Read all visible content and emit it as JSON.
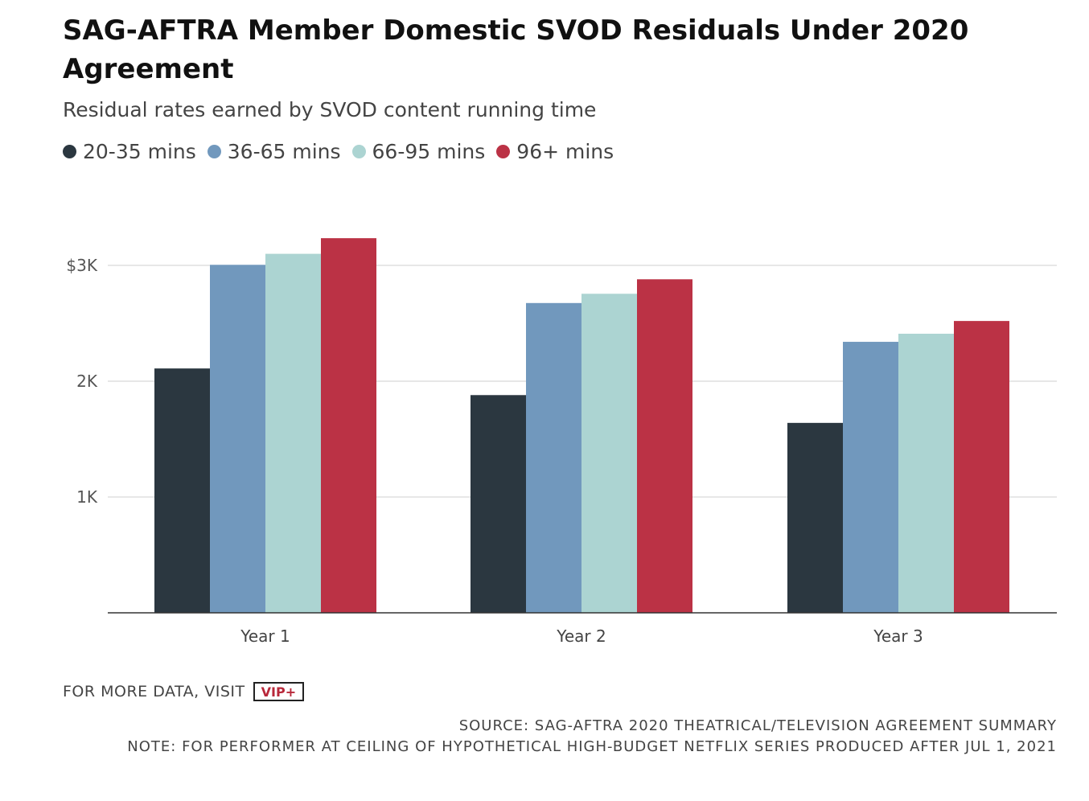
{
  "title": "SAG-AFTRA Member Domestic SVOD Residuals Under 2020 Agreement",
  "subtitle": "Residual rates earned by SVOD content running time",
  "legend": [
    {
      "label": "20-35 mins",
      "color": "#2b3740"
    },
    {
      "label": "36-65 mins",
      "color": "#7198bd"
    },
    {
      "label": "66-95 mins",
      "color": "#acd4d2"
    },
    {
      "label": "96+ mins",
      "color": "#bb3245"
    }
  ],
  "footer": {
    "more_data": "FOR MORE DATA, VISIT",
    "vip_label": "VIP+",
    "source": "SOURCE: SAG-AFTRA 2020 THEATRICAL/TELEVISION AGREEMENT SUMMARY",
    "note": "NOTE: FOR PERFORMER AT CEILING OF HYPOTHETICAL HIGH-BUDGET NETFLIX SERIES PRODUCED AFTER JUL 1, 2021"
  },
  "chart_data": {
    "type": "bar",
    "title": "SAG-AFTRA Member Domestic SVOD Residuals Under 2020 Agreement",
    "subtitle": "Residual rates earned by SVOD content running time",
    "xlabel": "",
    "ylabel": "",
    "categories": [
      "Year 1",
      "Year 2",
      "Year 3"
    ],
    "series": [
      {
        "name": "20-35 mins",
        "color": "#2b3740",
        "values": [
          2110,
          1880,
          1640
        ]
      },
      {
        "name": "36-65 mins",
        "color": "#7198bd",
        "values": [
          3005,
          2675,
          2340
        ]
      },
      {
        "name": "66-95 mins",
        "color": "#acd4d2",
        "values": [
          3100,
          2755,
          2410
        ]
      },
      {
        "name": "96+ mins",
        "color": "#bb3245",
        "values": [
          3235,
          2880,
          2520
        ]
      }
    ],
    "ylim": [
      0,
      3000
    ],
    "yticks": [
      {
        "value": 1000,
        "label": "1K"
      },
      {
        "value": 2000,
        "label": "2K"
      },
      {
        "value": 3000,
        "label": "$3K"
      }
    ],
    "grid": true,
    "legend_position": "top-left"
  }
}
